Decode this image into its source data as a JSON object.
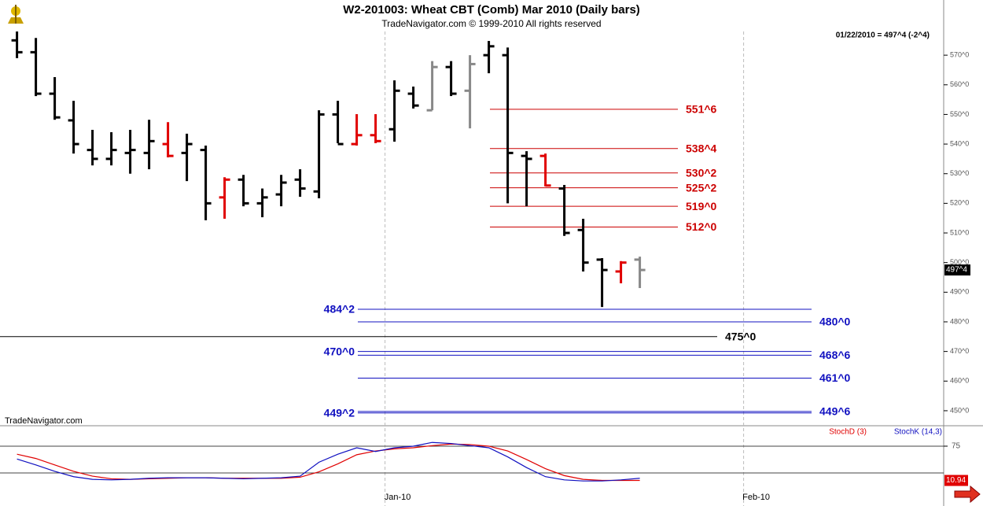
{
  "chart_data": [
    {
      "type": "ohlc",
      "title": "W2-201003:  Wheat CBT (Comb) Mar 2010  (Daily bars)",
      "subtitle": "TradeNavigator.com © 1999-2010 All rights reserved",
      "watermark": "TradeNavigator.com",
      "info": "01/22/2010 = 497^4 (-2^4)",
      "last_price": {
        "value": 497.5,
        "label": "497^4"
      },
      "xlim": [
        -0.9,
        49.1
      ],
      "xticks": [
        {
          "value": 19.5,
          "label": "Jan-10"
        },
        {
          "value": 38.5,
          "label": "Feb-10"
        }
      ],
      "ylim": [
        445.2,
        578
      ],
      "yticks": [
        {
          "value": 450,
          "label": "450^0"
        },
        {
          "value": 460,
          "label": "460^0"
        },
        {
          "value": 470,
          "label": "470^0"
        },
        {
          "value": 480,
          "label": "480^0"
        },
        {
          "value": 490,
          "label": "490^0"
        },
        {
          "value": 500,
          "label": "500^0"
        },
        {
          "value": 510,
          "label": "510^0"
        },
        {
          "value": 520,
          "label": "520^0"
        },
        {
          "value": 530,
          "label": "530^0"
        },
        {
          "value": 540,
          "label": "540^0"
        },
        {
          "value": 550,
          "label": "550^0"
        },
        {
          "value": 560,
          "label": "560^0"
        },
        {
          "value": 570,
          "label": "570^0"
        }
      ],
      "open": [
        575,
        571,
        557,
        548,
        538,
        535,
        537,
        537,
        540,
        537,
        538,
        522,
        528,
        520,
        523,
        528,
        524,
        550,
        540,
        543,
        545,
        557,
        551.4,
        566,
        558,
        570,
        570,
        536,
        536,
        525,
        511,
        501,
        497,
        501
      ],
      "high": [
        578,
        575.8,
        562.6,
        554.6,
        544.8,
        544,
        544.8,
        548.2,
        547.4,
        543.5,
        539.5,
        528.8,
        529.6,
        525,
        529.6,
        531.5,
        551.4,
        554.6,
        550.1,
        550.1,
        561.5,
        559.4,
        568,
        568,
        570,
        574.8,
        572.6,
        537.6,
        536.8,
        526.2,
        514.8,
        501.5,
        500.5,
        502
      ],
      "low": [
        569,
        556.2,
        548.2,
        536.8,
        532.8,
        532.8,
        530,
        531.5,
        535.5,
        527.5,
        514.3,
        514.8,
        519,
        515.3,
        519,
        522.2,
        521.7,
        540.3,
        539.5,
        540.3,
        540.8,
        552,
        551.4,
        556.2,
        545.3,
        563.9,
        520,
        519,
        525.7,
        509,
        497,
        485,
        493,
        491.4
      ],
      "close": [
        571,
        557,
        549,
        540,
        535,
        538,
        538,
        541,
        536,
        540,
        520,
        528,
        520,
        522,
        527,
        525,
        550,
        540,
        543,
        541,
        558,
        553,
        566,
        557,
        567,
        573,
        537,
        535,
        526,
        510,
        500,
        497.5,
        500,
        497.5
      ],
      "colors": [
        "#000000",
        "#000000",
        "#000000",
        "#000000",
        "#000000",
        "#000000",
        "#000000",
        "#000000",
        "#e00000",
        "#000000",
        "#000000",
        "#e00000",
        "#000000",
        "#000000",
        "#000000",
        "#000000",
        "#000000",
        "#000000",
        "#e00000",
        "#e00000",
        "#000000",
        "#000000",
        "#888888",
        "#000000",
        "#888888",
        "#000000",
        "#000000",
        "#000000",
        "#e00000",
        "#000000",
        "#000000",
        "#000000",
        "#e00000",
        "#888888"
      ],
      "levels": [
        {
          "value": 551.75,
          "label": "551^6",
          "color": "#cc0000"
        },
        {
          "value": 538.5,
          "label": "538^4",
          "color": "#cc0000"
        },
        {
          "value": 530.25,
          "label": "530^2",
          "color": "#cc0000"
        },
        {
          "value": 525.25,
          "label": "525^2",
          "color": "#cc0000"
        },
        {
          "value": 519,
          "label": "519^0",
          "color": "#cc0000"
        },
        {
          "value": 512,
          "label": "512^0",
          "color": "#cc0000"
        },
        {
          "value": 484.25,
          "label": "484^2",
          "color": "#1010c0"
        },
        {
          "value": 480,
          "label": "480^0",
          "color": "#1010c0"
        },
        {
          "value": 475,
          "label": "475^0",
          "color": "#000000"
        },
        {
          "value": 470,
          "label": "470^0",
          "color": "#1010c0"
        },
        {
          "value": 468.75,
          "label": "468^6",
          "color": "#1010c0"
        },
        {
          "value": 461,
          "label": "461^0",
          "color": "#1010c0"
        },
        {
          "value": 449.25,
          "label": "449^2",
          "color": "#1010c0"
        },
        {
          "value": 449.75,
          "label": "449^6",
          "color": "#1010c0"
        }
      ]
    },
    {
      "type": "line",
      "xlim": [
        -0.9,
        49.1
      ],
      "ylim": [
        -32.4,
        113.2
      ],
      "yticks": [
        75
      ],
      "ref_lines": [
        25,
        75
      ],
      "series": [
        {
          "name": "StochD (3)",
          "color": "#e00000",
          "values": [
            60,
            52,
            40,
            28,
            19,
            14,
            13,
            14,
            15,
            16,
            16,
            15,
            15,
            15,
            15,
            17,
            27,
            42,
            59,
            66,
            70,
            72,
            76,
            79,
            78,
            75,
            66,
            50,
            33,
            20,
            13,
            11,
            11,
            10.94
          ]
        },
        {
          "name": "StochK (14,3)",
          "color": "#1010c0",
          "values": [
            51,
            40,
            28,
            18,
            13,
            12,
            13,
            15,
            16,
            16,
            16,
            15,
            14,
            15,
            16,
            19,
            45,
            60,
            72,
            65,
            72,
            75,
            82,
            80,
            76,
            72,
            55,
            35,
            18,
            12,
            10,
            10,
            12,
            15
          ]
        }
      ]
    }
  ]
}
